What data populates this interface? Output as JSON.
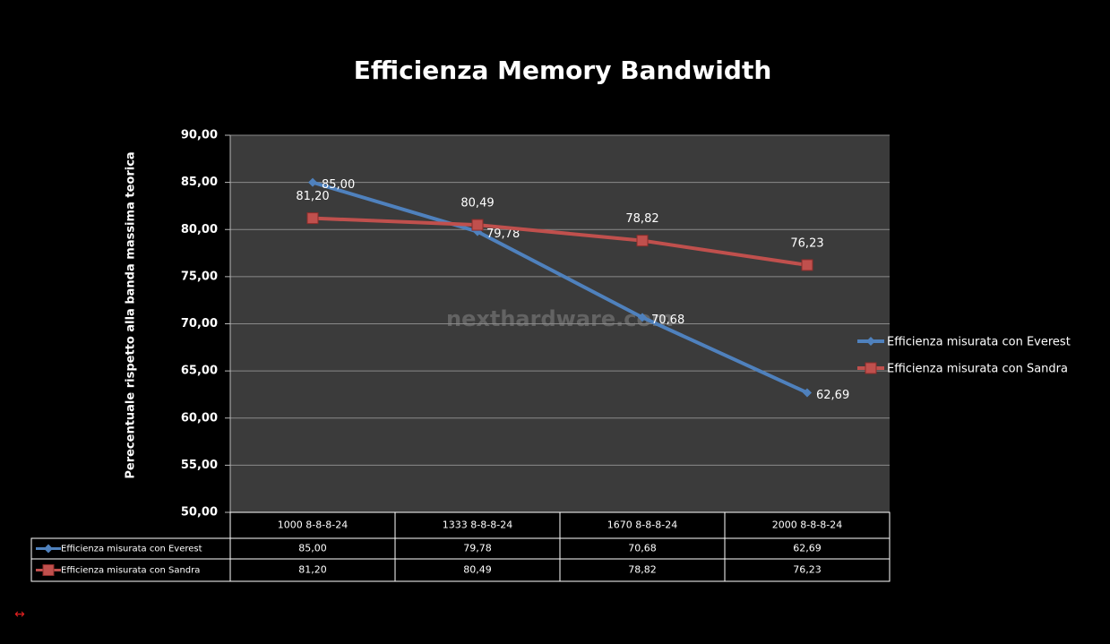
{
  "chart_data": {
    "type": "line",
    "title": "Efficienza Memory Bandwidth",
    "ylabel": "Perecentuale rispetto alla banda massima teorica",
    "watermark": "nexthardware.com",
    "footer_symbol": "↔",
    "categories": [
      "1000 8-8-8-24",
      "1333 8-8-8-24",
      "1670 8-8-8-24",
      "2000 8-8-8-24"
    ],
    "series": [
      {
        "name": "Efficienza misurata con Everest",
        "color": "#4f81bd",
        "marker": "diamond",
        "values": [
          85.0,
          79.78,
          70.68,
          62.69
        ],
        "value_labels": [
          "85,00",
          "79,78",
          "70,68",
          "62,69"
        ]
      },
      {
        "name": "Efficienza misurata con Sandra",
        "color": "#c0504d",
        "marker": "square",
        "values": [
          81.2,
          80.49,
          78.82,
          76.23
        ],
        "value_labels": [
          "81,20",
          "80,49",
          "78,82",
          "76,23"
        ]
      }
    ],
    "ylim": [
      50,
      90
    ],
    "yticks": [
      {
        "value": 50,
        "label": "50,00"
      },
      {
        "value": 55,
        "label": "55,00"
      },
      {
        "value": 60,
        "label": "60,00"
      },
      {
        "value": 65,
        "label": "65,00"
      },
      {
        "value": 70,
        "label": "70,00"
      },
      {
        "value": 75,
        "label": "75,00"
      },
      {
        "value": 80,
        "label": "80,00"
      },
      {
        "value": 85,
        "label": "85,00"
      },
      {
        "value": 90,
        "label": "90,00"
      }
    ],
    "grid": true,
    "legend": "right",
    "data_table": true
  }
}
